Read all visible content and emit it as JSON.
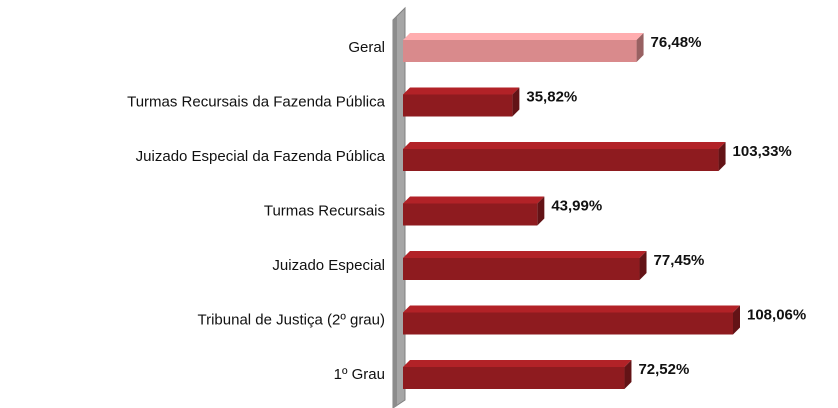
{
  "chart_data": {
    "type": "bar",
    "orientation": "horizontal",
    "categories": [
      "Geral",
      "Turmas Recursais da Fazenda Pública",
      "Juizado Especial da Fazenda Pública",
      "Turmas Recursais",
      "Juizado Especial",
      "Tribunal de Justiça (2º grau)",
      "1º Grau"
    ],
    "values": [
      76.48,
      35.82,
      103.33,
      43.99,
      77.45,
      108.06,
      72.52
    ],
    "value_labels": [
      "76,48%",
      "35,82%",
      "103,33%",
      "43,99%",
      "77,45%",
      "108,06%",
      "72,52%"
    ],
    "colors": [
      "#d98a8c",
      "#8e1b1f",
      "#8e1b1f",
      "#8e1b1f",
      "#8e1b1f",
      "#8e1b1f",
      "#8e1b1f"
    ]
  }
}
